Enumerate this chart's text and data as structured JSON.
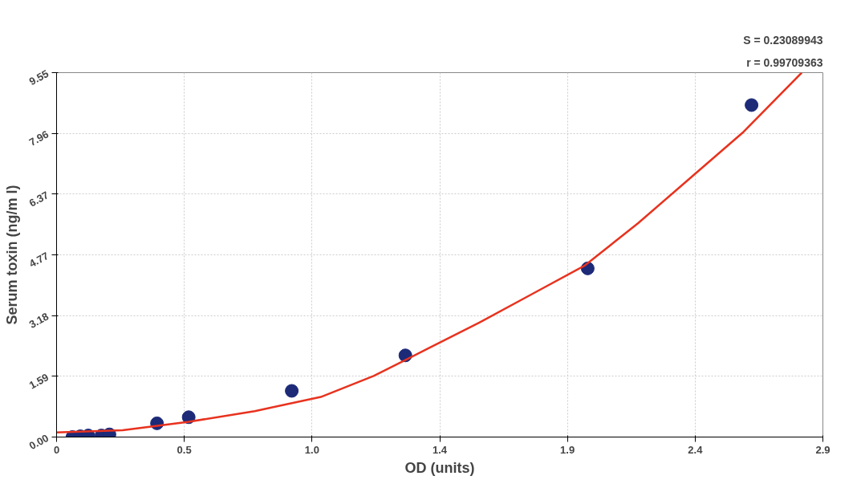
{
  "chart_data": {
    "type": "scatter",
    "xlabel": "OD (units)",
    "ylabel": "Serum toxin (ng/m l)",
    "annotations": [
      "S = 0.23089943",
      "r = 0.99709363"
    ],
    "xlim": [
      0,
      2.9
    ],
    "ylim": [
      0,
      9.55
    ],
    "xticks": [
      0,
      {
        "value": 0.4833,
        "label": "0.5"
      },
      {
        "value": 0.9667,
        "label": "1.0"
      },
      {
        "value": 1.45,
        "label": "1.4"
      },
      {
        "value": 1.9333,
        "label": "1.9"
      },
      {
        "value": 2.4167,
        "label": "2.4"
      },
      2.9
    ],
    "yticks": [
      {
        "value": 0,
        "label": "0.00"
      },
      {
        "value": 1.5917,
        "label": "1.59"
      },
      {
        "value": 3.1833,
        "label": "3.18"
      },
      {
        "value": 4.775,
        "label": "4.77"
      },
      {
        "value": 6.3667,
        "label": "6.37"
      },
      {
        "value": 7.9583,
        "label": "7.96"
      },
      9.55
    ],
    "grid": true,
    "series": [
      {
        "color": "#1c2a78",
        "marker": "circle",
        "x": [
          0.06,
          0.09,
          0.12,
          0.17,
          0.2,
          0.38,
          0.5,
          0.89,
          1.32,
          2.01,
          2.63
        ],
        "values": [
          0.0,
          0.02,
          0.04,
          0.04,
          0.07,
          0.36,
          0.52,
          1.21,
          2.14,
          4.42,
          8.7
        ]
      },
      {
        "type": "line",
        "color": "#e8321e",
        "marker": "none",
        "x": [
          0,
          0.25,
          0.5,
          0.75,
          1.0,
          1.2,
          1.4,
          1.6,
          1.8,
          2.0,
          2.2,
          2.4,
          2.6,
          2.82
        ],
        "values": [
          0.12,
          0.18,
          0.4,
          0.68,
          1.05,
          1.6,
          2.3,
          3.0,
          3.75,
          4.5,
          5.6,
          6.8,
          8.0,
          9.55
        ]
      }
    ]
  }
}
